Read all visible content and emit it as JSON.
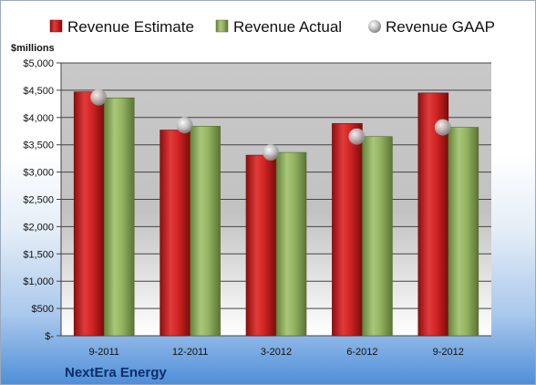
{
  "company": "NextEra Energy",
  "unit_label": "$millions",
  "colors": {
    "estimate": "#c81e1e",
    "actual": "#8fb05a",
    "gaap": "#b8b8b8"
  },
  "chart_data": {
    "type": "bar",
    "categories": [
      "9-2011",
      "12-2011",
      "3-2012",
      "6-2012",
      "9-2012"
    ],
    "series": [
      {
        "name": "Revenue Estimate",
        "values": [
          4470,
          3770,
          3310,
          3890,
          4450
        ]
      },
      {
        "name": "Revenue Actual",
        "values": [
          4360,
          3840,
          3360,
          3650,
          3820
        ]
      },
      {
        "name": "Revenue GAAP",
        "values": [
          4370,
          3860,
          3360,
          3650,
          3820
        ]
      }
    ],
    "ylabel": "$millions",
    "ylim": [
      0,
      5000
    ],
    "yticks": [
      0,
      500,
      1000,
      1500,
      2000,
      2500,
      3000,
      3500,
      4000,
      4500,
      5000
    ],
    "ytick_labels": [
      "$-",
      "$500",
      "$1,000",
      "$1,500",
      "$2,000",
      "$2,500",
      "$3,000",
      "$3,500",
      "$4,000",
      "$4,500",
      "$5,000"
    ],
    "legend_position": "top",
    "grid": true
  }
}
